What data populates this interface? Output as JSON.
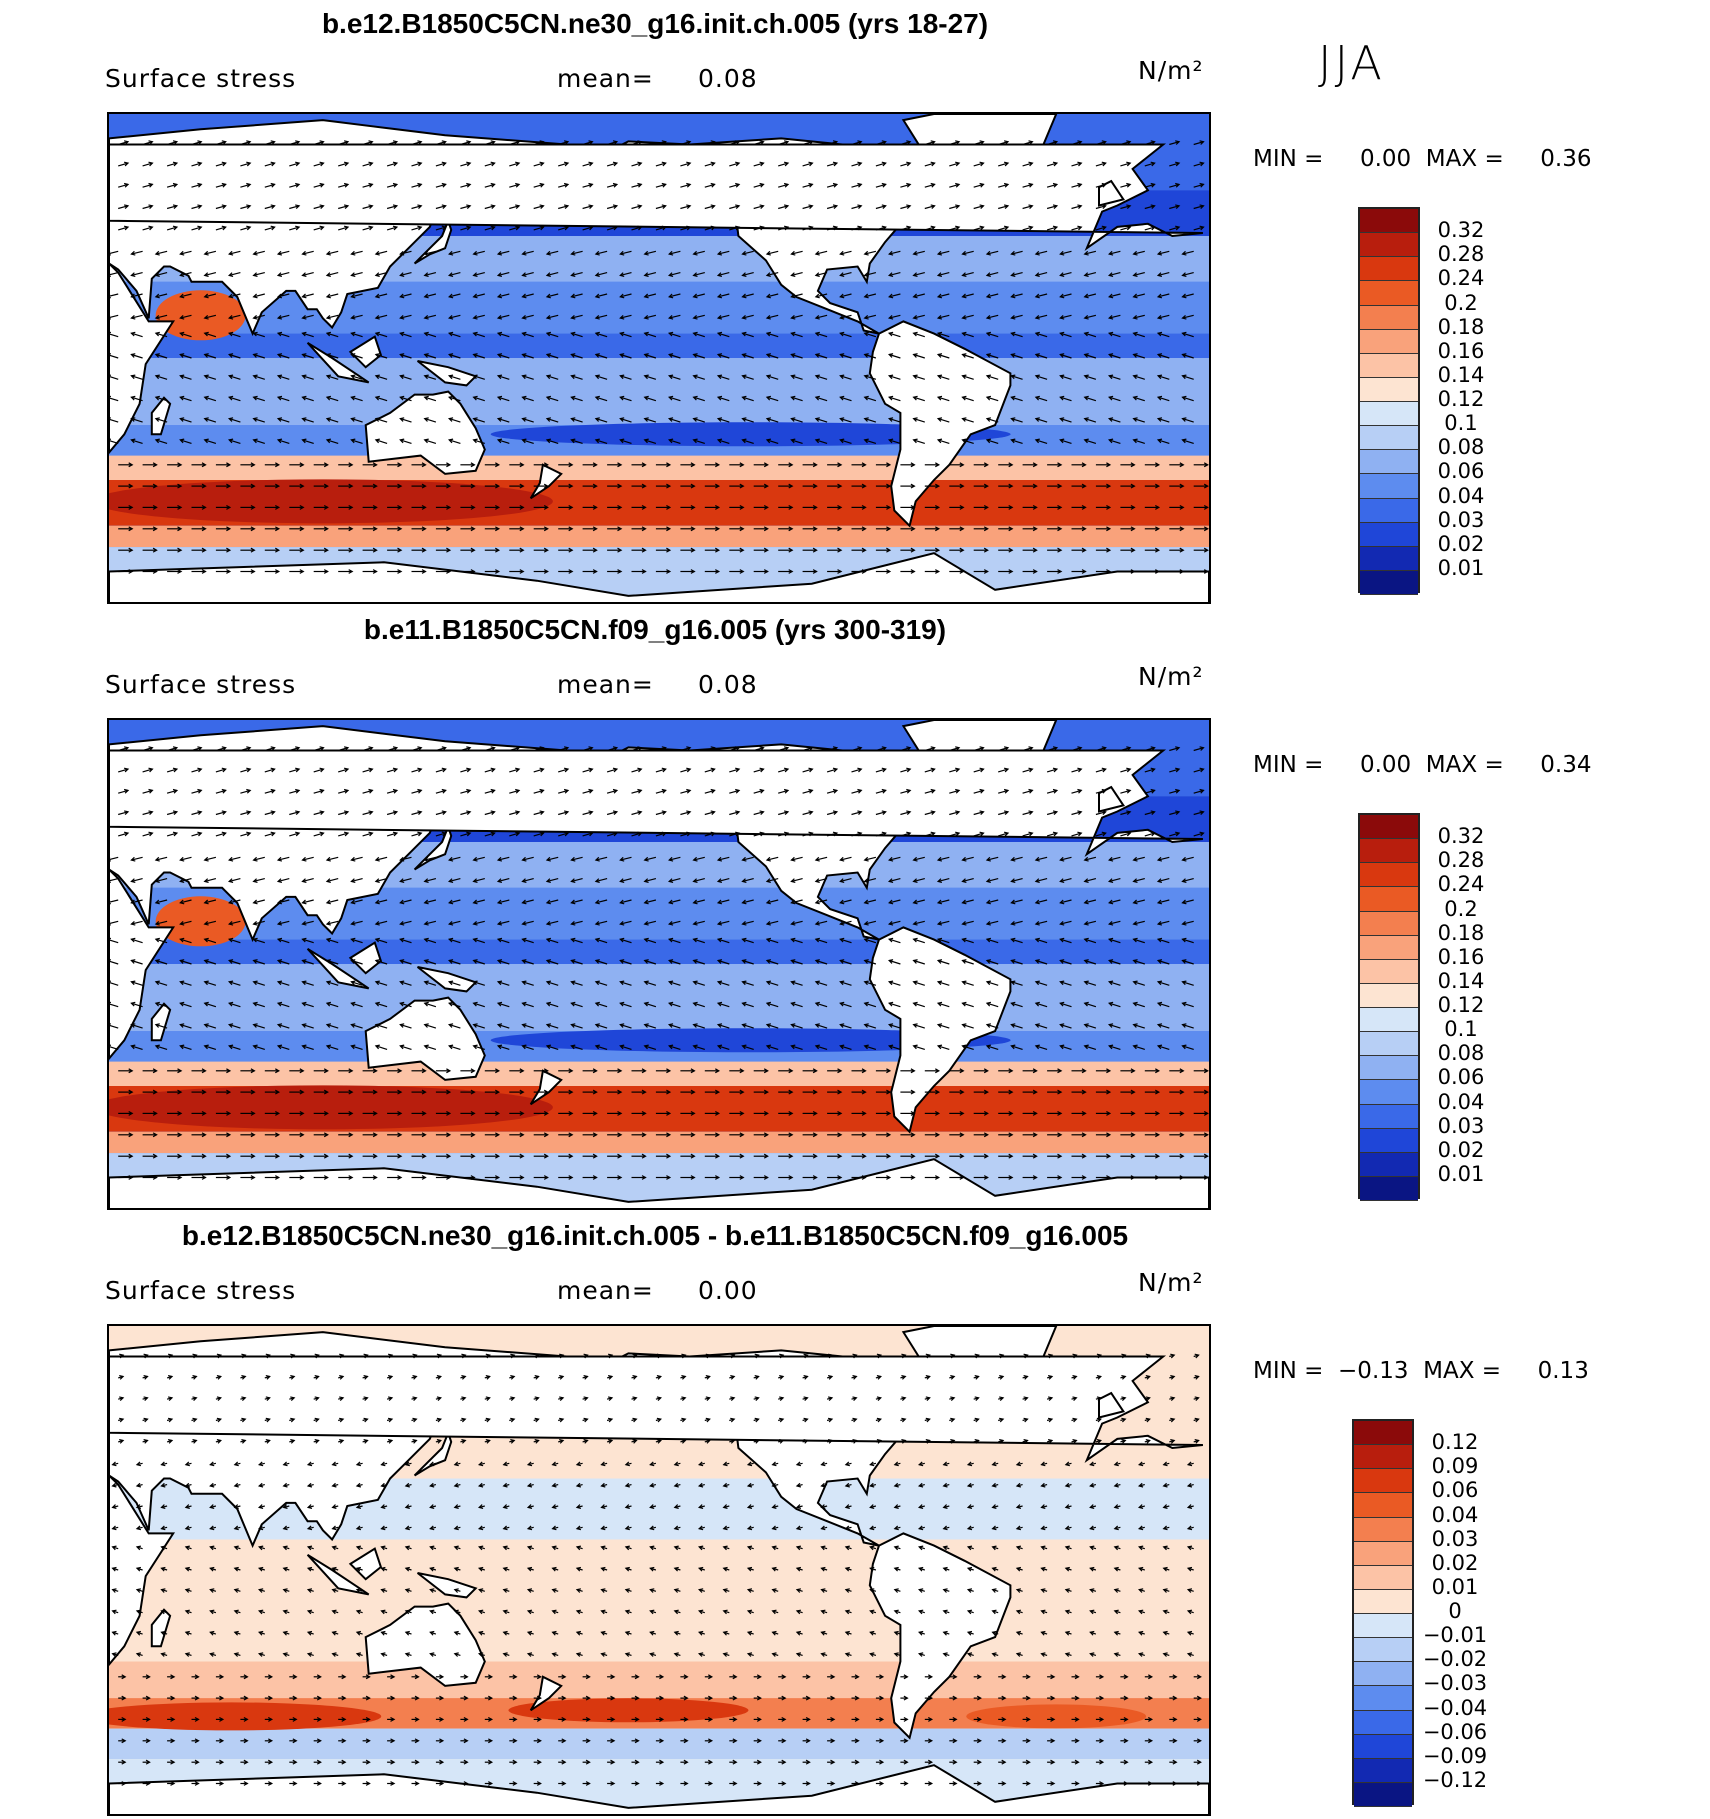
{
  "season": "JJA",
  "units": "N/m²",
  "panels": [
    {
      "title": "b.e12.B1850C5CN.ne30_g16.init.ch.005 (yrs 18-27)",
      "variable": "Surface stress",
      "mean_label": "mean=",
      "mean_value": "0.08",
      "minmax": "MIN =     0.00  MAX =     0.36",
      "kind": "abs",
      "legend_ticks": [
        "0.32",
        "0.28",
        "0.24",
        "0.2",
        "0.18",
        "0.16",
        "0.14",
        "0.12",
        "0.1",
        "0.08",
        "0.06",
        "0.04",
        "0.03",
        "0.02",
        "0.01"
      ],
      "legend_colors": [
        "#8b0a0a",
        "#b81e0d",
        "#d9380f",
        "#ea5a24",
        "#f37f4f",
        "#f9a27b",
        "#fcc3a6",
        "#fde4d2",
        "#d6e6f8",
        "#b7cff5",
        "#8fb1f2",
        "#5d8cef",
        "#3a69e8",
        "#1f46d8",
        "#1229b2",
        "#0a1583"
      ]
    },
    {
      "title": "b.e11.B1850C5CN.f09_g16.005 (yrs 300-319)",
      "variable": "Surface stress",
      "mean_label": "mean=",
      "mean_value": "0.08",
      "minmax": "MIN =     0.00  MAX =     0.34",
      "kind": "abs",
      "legend_ticks": [
        "0.32",
        "0.28",
        "0.24",
        "0.2",
        "0.18",
        "0.16",
        "0.14",
        "0.12",
        "0.1",
        "0.08",
        "0.06",
        "0.04",
        "0.03",
        "0.02",
        "0.01"
      ],
      "legend_colors": [
        "#8b0a0a",
        "#b81e0d",
        "#d9380f",
        "#ea5a24",
        "#f37f4f",
        "#f9a27b",
        "#fcc3a6",
        "#fde4d2",
        "#d6e6f8",
        "#b7cff5",
        "#8fb1f2",
        "#5d8cef",
        "#3a69e8",
        "#1f46d8",
        "#1229b2",
        "#0a1583"
      ]
    },
    {
      "title": "b.e12.B1850C5CN.ne30_g16.init.ch.005 - b.e11.B1850C5CN.f09_g16.005",
      "variable": "Surface stress",
      "mean_label": "mean=",
      "mean_value": "0.00",
      "minmax": "MIN =  −0.13  MAX =     0.13",
      "kind": "diff",
      "legend_ticks": [
        "0.12",
        "0.09",
        "0.06",
        "0.04",
        "0.03",
        "0.02",
        "0.01",
        "0",
        "−0.01",
        "−0.02",
        "−0.03",
        "−0.04",
        "−0.06",
        "−0.09",
        "−0.12"
      ],
      "legend_colors": [
        "#8b0a0a",
        "#b81e0d",
        "#d9380f",
        "#ea5a24",
        "#f37f4f",
        "#f9a27b",
        "#fcc3a6",
        "#fde4d2",
        "#d6e6f8",
        "#b7cff5",
        "#8fb1f2",
        "#5d8cef",
        "#3a69e8",
        "#1f46d8",
        "#1229b2",
        "#0a1583"
      ]
    }
  ]
}
